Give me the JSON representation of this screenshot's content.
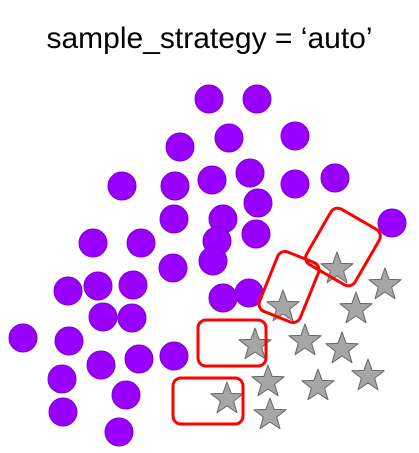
{
  "title": "sample_strategy = ‘auto’",
  "colors": {
    "circle_fill": "#9900ff",
    "circle_stroke": "#7a00cc",
    "star_fill": "#a6a6a6",
    "star_stroke": "#666666",
    "box_stroke": "#ff0000"
  },
  "legend_icons": [
    "circle-icon",
    "star-icon",
    "rounded-rectangle-icon"
  ]
}
